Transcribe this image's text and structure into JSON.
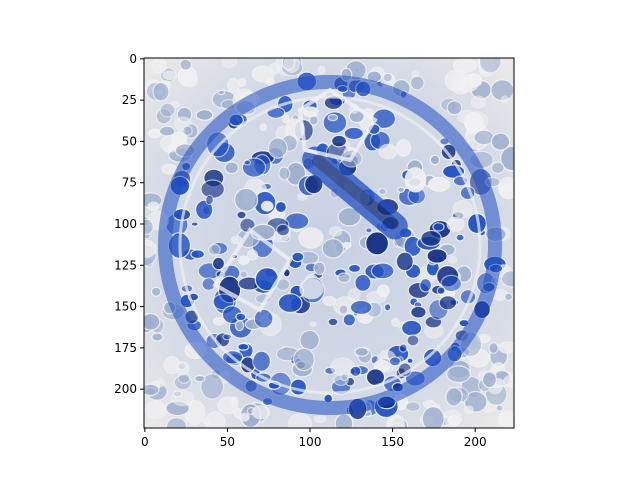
{
  "chart_data": {
    "type": "heatmap",
    "title": "",
    "xlabel": "",
    "ylabel": "",
    "image_extent": {
      "x": [
        0,
        224
      ],
      "y": [
        0,
        224
      ]
    },
    "xlim": [
      -0.5,
      223.5
    ],
    "ylim": [
      223.5,
      -0.5
    ],
    "x_ticks": [
      0,
      50,
      100,
      150,
      200
    ],
    "y_ticks": [
      0,
      25,
      50,
      75,
      100,
      125,
      150,
      175,
      200
    ],
    "grid": false,
    "legend": "none",
    "palette": {
      "background": "#d9dde6",
      "light": "#f1f0f2",
      "mid": "#9fb0cf",
      "deep_blue": "#1f4fc2",
      "navy": "#132f86"
    }
  }
}
